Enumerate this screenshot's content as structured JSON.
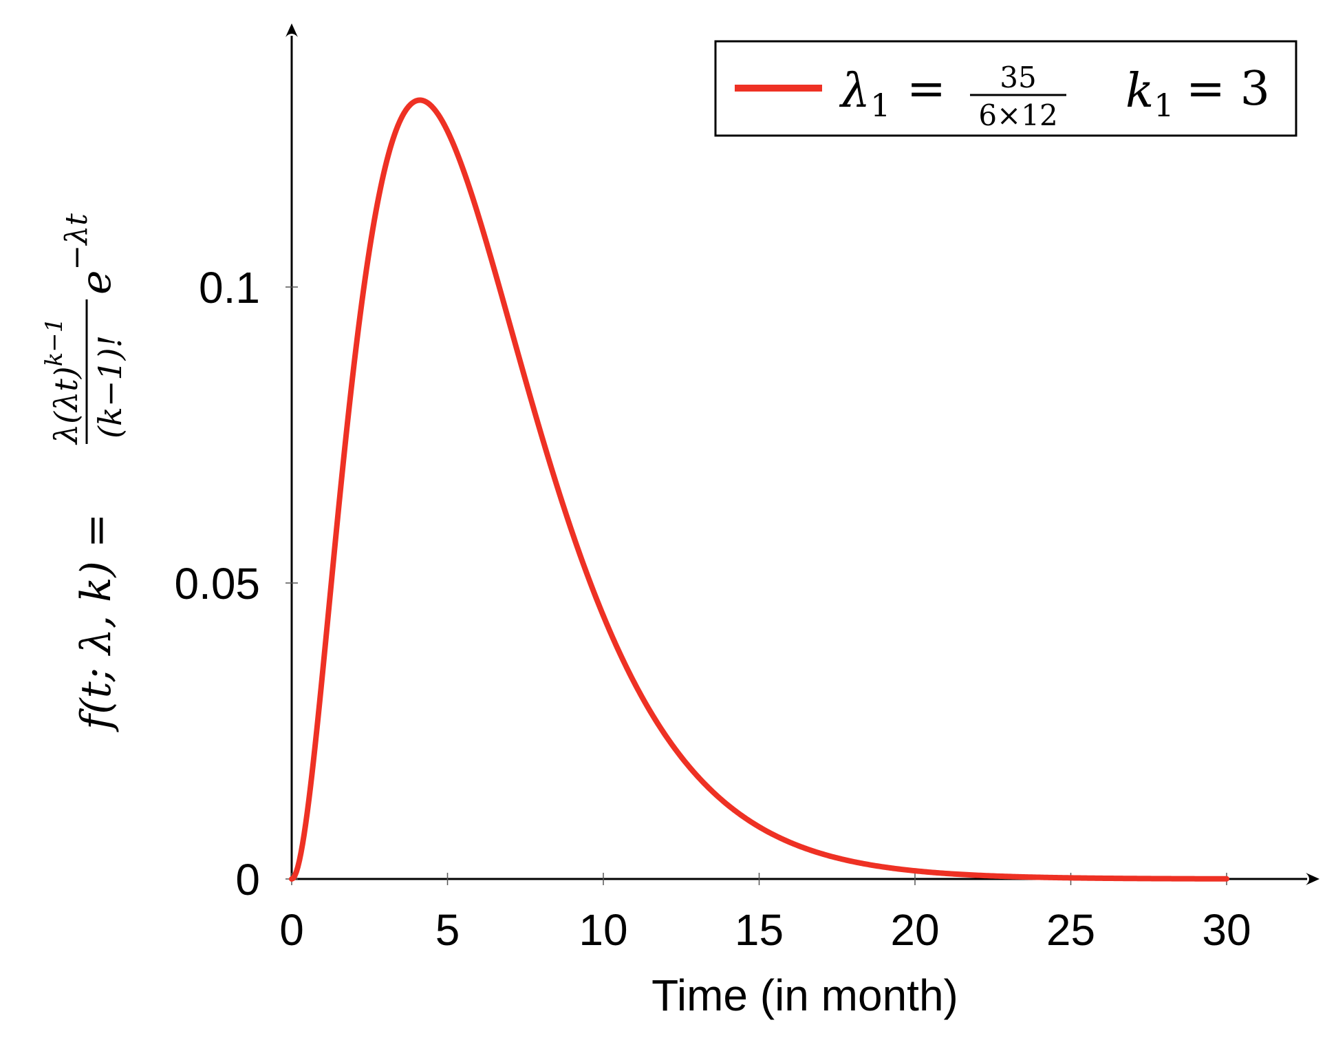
{
  "chart_data": {
    "type": "line",
    "xlabel": "Time (in month)",
    "ylabel": "f(t; λ, k) = λ(λt)^(k−1)/(k−1)! · e^(−λt)",
    "ylabel_parts": {
      "lhs": "f(t; λ, k) =",
      "numerator": "λ(λt)",
      "numerator_exp": "k−1",
      "denominator": "(k−1)!",
      "tail": "e",
      "tail_exp": "−λt"
    },
    "xlim": [
      0,
      30
    ],
    "ylim": [
      0,
      0.1
    ],
    "xticks": [
      0,
      5,
      10,
      15,
      20,
      25,
      30
    ],
    "xtick_labels": [
      "0",
      "5",
      "10",
      "15",
      "20",
      "25",
      "30"
    ],
    "yticks": [
      0,
      0.05,
      0.1
    ],
    "ytick_labels": [
      "0",
      "0.05",
      "0.1"
    ],
    "grid": false,
    "legend_placement": "top-right",
    "legend": {
      "lambda_sym": "λ",
      "lambda_sub": "1",
      "eq": "=",
      "frac_num": "35",
      "frac_den": "6×12",
      "k_sym": "k",
      "k_sub": "1",
      "k_eq": "= 3"
    },
    "series": [
      {
        "name": "λ1 = 35/(6×12)   k1 = 3",
        "color": "#ee3124",
        "function": "erlang_pdf",
        "lambda": 0.4861,
        "k": 3,
        "x_range": [
          0,
          30
        ]
      }
    ]
  }
}
